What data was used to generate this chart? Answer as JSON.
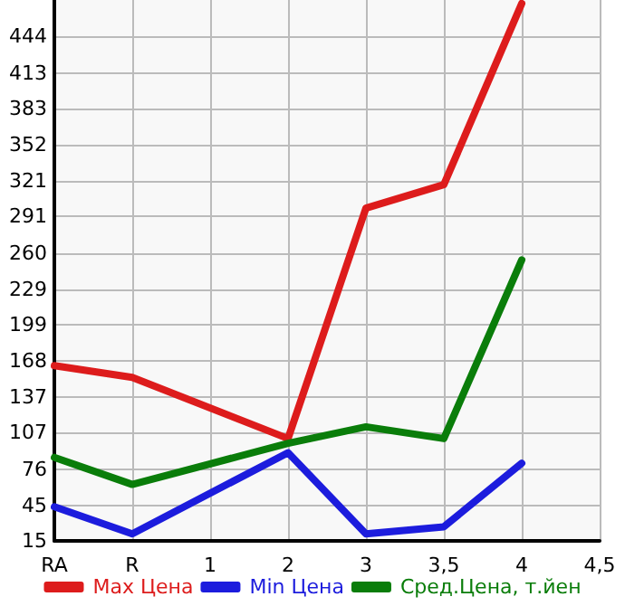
{
  "chart_data": {
    "type": "line",
    "categories": [
      "RA",
      "R",
      "1",
      "2",
      "3",
      "3,5",
      "4",
      "4,5"
    ],
    "series": [
      {
        "name": "Max Цена",
        "color": "#dd1c1c",
        "values": [
          164,
          154,
          null,
          102,
          298,
          318,
          472,
          null
        ]
      },
      {
        "name": "Min Цена",
        "color": "#1c1cdd",
        "values": [
          44,
          21,
          null,
          90,
          21,
          27,
          81,
          null
        ]
      },
      {
        "name": "Сред.Цена, т.йен",
        "color": "#0a7d0a",
        "values": [
          86,
          63,
          null,
          98,
          112,
          102,
          254,
          null
        ]
      }
    ],
    "ylim": [
      15,
      475
    ],
    "yticks": [
      15,
      45,
      76,
      107,
      137,
      168,
      199,
      229,
      260,
      291,
      321,
      352,
      383,
      413,
      444
    ],
    "grid": true,
    "legend": "bottom",
    "marker": "none",
    "line_style": "solid"
  }
}
